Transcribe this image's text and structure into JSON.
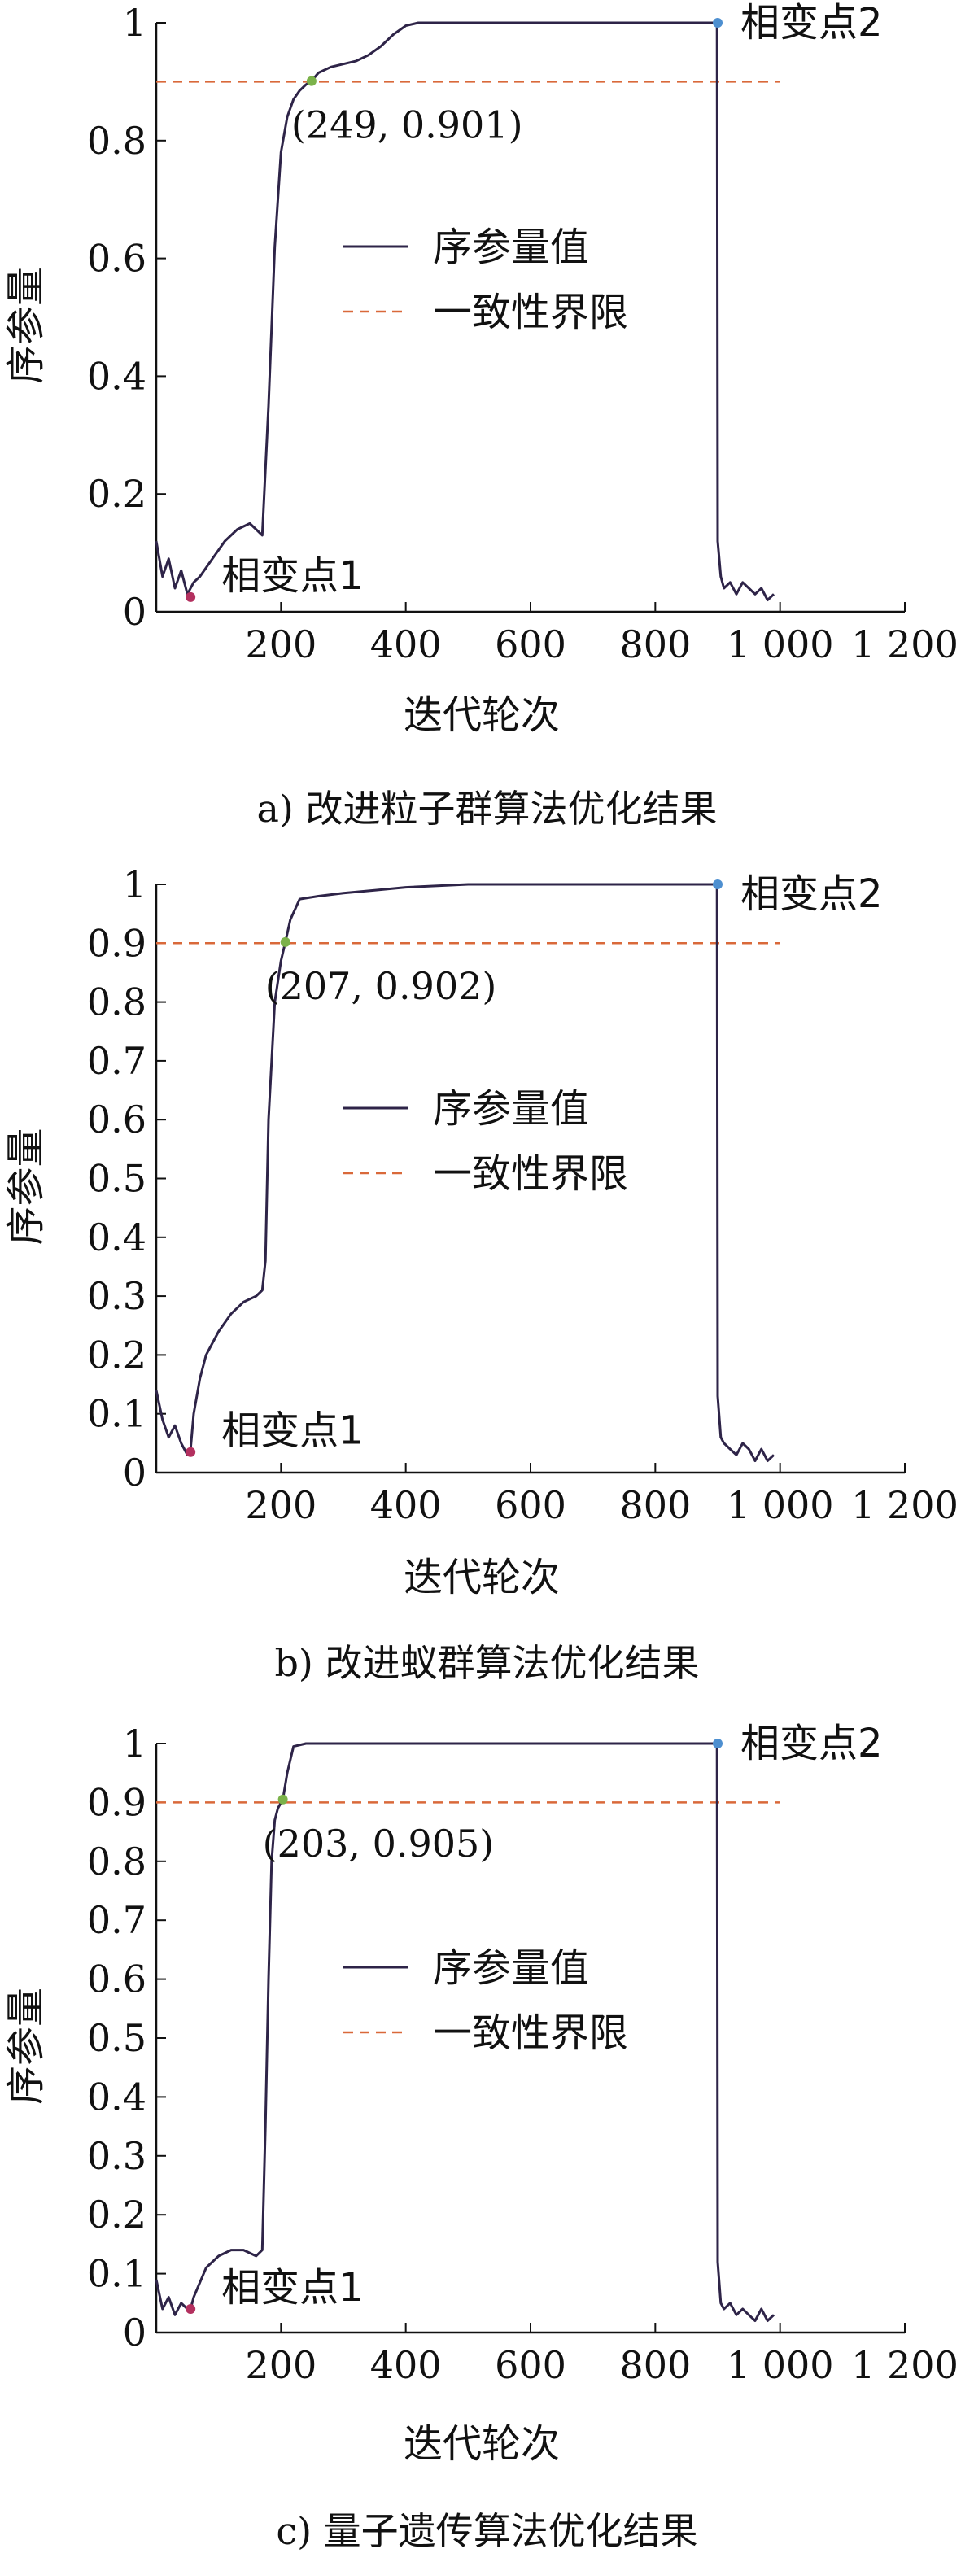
{
  "colors": {
    "series": "#2e2448",
    "threshold": "#d9693a",
    "point": "#7bb24a",
    "phase_point1": "#b3305f",
    "phase_point2": "#4d8fd0"
  },
  "chart_data": [
    {
      "type": "line",
      "caption": "a) 改进粒子群算法优化结果",
      "xlabel": "迭代轮次",
      "ylabel": "序参量",
      "xlim": [
        0,
        1200
      ],
      "ylim": [
        0,
        1
      ],
      "xticks": [
        200,
        400,
        600,
        800,
        1000,
        1200
      ],
      "xtick_labels": [
        "200",
        "400",
        "600",
        "800",
        "1 000",
        "1 200"
      ],
      "yticks": [
        0,
        0.2,
        0.4,
        0.6,
        0.8,
        1
      ],
      "ytick_labels": [
        "0",
        "0.2",
        "0.4",
        "0.6",
        "0.8",
        "1"
      ],
      "legend": {
        "placement": "center",
        "series_label": "序参量值",
        "threshold_label": "一致性界限"
      },
      "threshold": 0.9,
      "threshold_x": [
        0,
        1000
      ],
      "series": {
        "name": "序参量值",
        "x": [
          0,
          10,
          20,
          30,
          40,
          50,
          60,
          70,
          90,
          110,
          130,
          150,
          160,
          170,
          180,
          190,
          200,
          210,
          220,
          230,
          240,
          249,
          260,
          280,
          300,
          320,
          340,
          360,
          380,
          400,
          420,
          450,
          500,
          600,
          700,
          800,
          890,
          899,
          900,
          905,
          910,
          920,
          930,
          940,
          950,
          960,
          970,
          980,
          990
        ],
        "y": [
          0.12,
          0.06,
          0.09,
          0.04,
          0.07,
          0.03,
          0.05,
          0.06,
          0.09,
          0.12,
          0.14,
          0.15,
          0.14,
          0.13,
          0.35,
          0.62,
          0.78,
          0.84,
          0.87,
          0.885,
          0.895,
          0.901,
          0.915,
          0.925,
          0.93,
          0.935,
          0.945,
          0.96,
          0.98,
          0.995,
          1.0,
          1.0,
          1.0,
          1.0,
          1.0,
          1.0,
          1.0,
          1.0,
          0.12,
          0.06,
          0.04,
          0.05,
          0.03,
          0.05,
          0.04,
          0.03,
          0.04,
          0.02,
          0.03
        ]
      },
      "annotations": [
        {
          "text": "(249, 0.901)",
          "x": 249,
          "y": 0.901
        },
        {
          "text": "相变点1",
          "x": 55,
          "y": 0.025
        },
        {
          "text": "相变点2",
          "x": 900,
          "y": 1.0
        }
      ]
    },
    {
      "type": "line",
      "caption": "b) 改进蚁群算法优化结果",
      "xlabel": "迭代轮次",
      "ylabel": "序参量",
      "xlim": [
        0,
        1200
      ],
      "ylim": [
        0,
        1
      ],
      "xticks": [
        200,
        400,
        600,
        800,
        1000,
        1200
      ],
      "xtick_labels": [
        "200",
        "400",
        "600",
        "800",
        "1 000",
        "1 200"
      ],
      "yticks": [
        0,
        0.1,
        0.2,
        0.3,
        0.4,
        0.5,
        0.6,
        0.7,
        0.8,
        0.9,
        1
      ],
      "ytick_labels": [
        "0",
        "0.1",
        "0.2",
        "0.3",
        "0.4",
        "0.5",
        "0.6",
        "0.7",
        "0.8",
        "0.9",
        "1"
      ],
      "legend": {
        "placement": "center",
        "series_label": "序参量值",
        "threshold_label": "一致性界限"
      },
      "threshold": 0.9,
      "threshold_x": [
        0,
        1000
      ],
      "series": {
        "name": "序参量值",
        "x": [
          0,
          10,
          20,
          30,
          40,
          50,
          55,
          60,
          70,
          80,
          100,
          120,
          140,
          160,
          170,
          175,
          180,
          190,
          200,
          207,
          215,
          230,
          260,
          300,
          350,
          400,
          500,
          600,
          700,
          800,
          890,
          899,
          900,
          905,
          910,
          920,
          930,
          940,
          950,
          960,
          970,
          980,
          990
        ],
        "y": [
          0.14,
          0.09,
          0.06,
          0.08,
          0.05,
          0.03,
          0.04,
          0.1,
          0.16,
          0.2,
          0.24,
          0.27,
          0.29,
          0.3,
          0.31,
          0.36,
          0.6,
          0.8,
          0.87,
          0.902,
          0.94,
          0.975,
          0.98,
          0.985,
          0.99,
          0.995,
          1.0,
          1.0,
          1.0,
          1.0,
          1.0,
          1.0,
          0.13,
          0.06,
          0.05,
          0.04,
          0.03,
          0.05,
          0.04,
          0.02,
          0.04,
          0.02,
          0.03
        ]
      },
      "annotations": [
        {
          "text": "(207, 0.902)",
          "x": 207,
          "y": 0.902
        },
        {
          "text": "相变点1",
          "x": 55,
          "y": 0.035
        },
        {
          "text": "相变点2",
          "x": 900,
          "y": 1.0
        }
      ]
    },
    {
      "type": "line",
      "caption": "c) 量子遗传算法优化结果",
      "xlabel": "迭代轮次",
      "ylabel": "序参量",
      "xlim": [
        0,
        1200
      ],
      "ylim": [
        0,
        1
      ],
      "xticks": [
        200,
        400,
        600,
        800,
        1000,
        1200
      ],
      "xtick_labels": [
        "200",
        "400",
        "600",
        "800",
        "1 000",
        "1 200"
      ],
      "yticks": [
        0,
        0.1,
        0.2,
        0.3,
        0.4,
        0.5,
        0.6,
        0.7,
        0.8,
        0.9,
        1
      ],
      "ytick_labels": [
        "0",
        "0.1",
        "0.2",
        "0.3",
        "0.4",
        "0.5",
        "0.6",
        "0.7",
        "0.8",
        "0.9",
        "1"
      ],
      "legend": {
        "placement": "center",
        "series_label": "序参量值",
        "threshold_label": "一致性界限"
      },
      "threshold": 0.9,
      "threshold_x": [
        0,
        1000
      ],
      "series": {
        "name": "序参量值",
        "x": [
          0,
          10,
          20,
          30,
          40,
          50,
          55,
          60,
          80,
          100,
          120,
          140,
          160,
          170,
          175,
          180,
          185,
          190,
          195,
          203,
          210,
          220,
          240,
          300,
          400,
          500,
          600,
          700,
          800,
          890,
          899,
          900,
          905,
          910,
          920,
          930,
          940,
          950,
          960,
          970,
          980,
          990
        ],
        "y": [
          0.09,
          0.04,
          0.06,
          0.03,
          0.05,
          0.04,
          0.04,
          0.06,
          0.11,
          0.13,
          0.14,
          0.14,
          0.13,
          0.14,
          0.35,
          0.6,
          0.8,
          0.87,
          0.89,
          0.905,
          0.95,
          0.995,
          1.0,
          1.0,
          1.0,
          1.0,
          1.0,
          1.0,
          1.0,
          1.0,
          1.0,
          0.12,
          0.05,
          0.04,
          0.05,
          0.03,
          0.04,
          0.03,
          0.02,
          0.04,
          0.02,
          0.03
        ]
      },
      "annotations": [
        {
          "text": "(203, 0.905)",
          "x": 203,
          "y": 0.905
        },
        {
          "text": "相变点1",
          "x": 55,
          "y": 0.04
        },
        {
          "text": "相变点2",
          "x": 900,
          "y": 1.0
        }
      ]
    }
  ]
}
